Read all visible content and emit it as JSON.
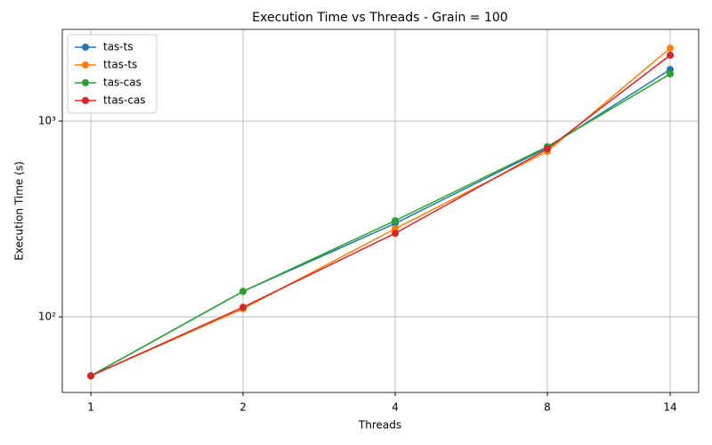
{
  "chart_data": {
    "type": "line",
    "title": "Execution Time vs Threads - Grain = 100",
    "x_label": "Threads",
    "y_label": "Execution Time (s)",
    "x": [
      1,
      2,
      4,
      8,
      14
    ],
    "xscale": "log2",
    "yscale": "log10",
    "xlim": [
      0.878,
      15.94
    ],
    "ylim": [
      41.1,
      2940
    ],
    "xticks": [
      1,
      2,
      4,
      8,
      14
    ],
    "yticks": [
      {
        "value": 100,
        "label": "10²"
      },
      {
        "value": 1000,
        "label": "10³"
      }
    ],
    "grid": true,
    "legend": "upper-left",
    "series": [
      {
        "name": "tas-ts",
        "color": "#1f77b4",
        "values": [
          50,
          135,
          300,
          731,
          1834
        ]
      },
      {
        "name": "ttas-ts",
        "color": "#ff7f0e",
        "values": [
          50,
          110,
          282,
          700,
          2359
        ]
      },
      {
        "name": "tas-cas",
        "color": "#2ca02c",
        "values": [
          50,
          135,
          310,
          740,
          1741
        ]
      },
      {
        "name": "ttas-cas",
        "color": "#d62728",
        "values": [
          50,
          112,
          267,
          720,
          2170
        ]
      }
    ]
  }
}
